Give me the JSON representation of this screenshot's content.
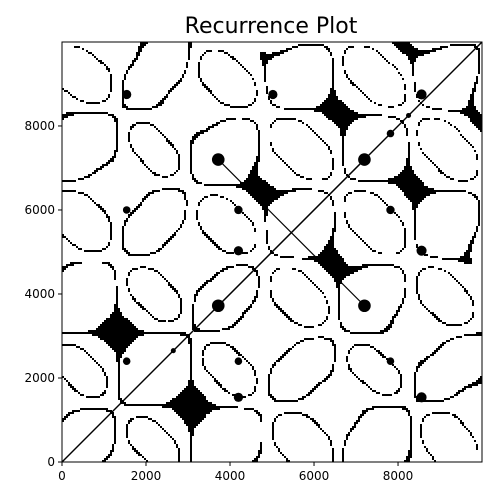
{
  "chart_data": {
    "type": "heatmap",
    "subtype": "recurrence-plot",
    "title": "Recurrence Plot",
    "xlabel": "",
    "ylabel": "",
    "xlim": [
      0,
      9999
    ],
    "ylim": [
      0,
      9999
    ],
    "x_ticks": [
      0,
      2000,
      4000,
      6000,
      8000
    ],
    "y_ticks": [
      0,
      2000,
      4000,
      6000,
      8000
    ],
    "x_tick_labels": [
      "0",
      "2000",
      "4000",
      "6000",
      "8000"
    ],
    "y_tick_labels": [
      "0",
      "2000",
      "4000",
      "6000",
      "8000"
    ],
    "grid": false,
    "colors": {
      "recurrence": "#000000",
      "background": "#ffffff"
    },
    "symmetry": "about the main diagonal",
    "diagonal_line": {
      "from": [
        0,
        0
      ],
      "to": [
        9999,
        9999
      ]
    },
    "blobs": [
      {
        "x": 3720,
        "y": 3720,
        "r": 150
      },
      {
        "x": 3720,
        "y": 7200,
        "r": 150
      },
      {
        "x": 7200,
        "y": 7200,
        "r": 150
      },
      {
        "x": 7200,
        "y": 3720,
        "r": 150
      },
      {
        "x": 2650,
        "y": 2650,
        "r": 60
      },
      {
        "x": 8250,
        "y": 8250,
        "r": 60
      },
      {
        "x": 1540,
        "y": 8750,
        "r": 110
      },
      {
        "x": 5020,
        "y": 8750,
        "r": 110
      },
      {
        "x": 8560,
        "y": 8750,
        "r": 120
      },
      {
        "x": 8560,
        "y": 5030,
        "r": 120
      },
      {
        "x": 8560,
        "y": 1540,
        "r": 120
      },
      {
        "x": 4200,
        "y": 1540,
        "r": 110
      },
      {
        "x": 4200,
        "y": 5030,
        "r": 110
      },
      {
        "x": 7820,
        "y": 7820,
        "r": 90
      },
      {
        "x": 4200,
        "y": 6000,
        "r": 100
      },
      {
        "x": 7820,
        "y": 6000,
        "r": 100
      },
      {
        "x": 4200,
        "y": 2400,
        "r": 90
      },
      {
        "x": 7820,
        "y": 2400,
        "r": 90
      },
      {
        "x": 1540,
        "y": 6000,
        "r": 90
      },
      {
        "x": 1540,
        "y": 2400,
        "r": 90
      }
    ]
  }
}
